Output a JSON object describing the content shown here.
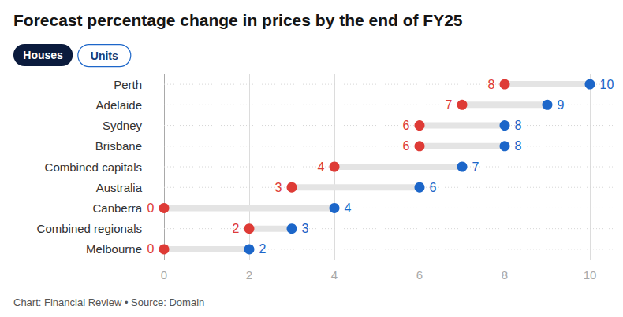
{
  "tabs": {
    "items": [
      "Houses",
      "Units"
    ],
    "selected": "Houses"
  },
  "chart_data": {
    "type": "dumbbell",
    "title": "Forecast percentage change in prices by the end of FY25",
    "source": "Chart: Financial Review • Source: Domain",
    "orientation": "horizontal",
    "categories": [
      "Perth",
      "Adelaide",
      "Sydney",
      "Brisbane",
      "Combined capitals",
      "Australia",
      "Canberra",
      "Combined regionals",
      "Melbourne"
    ],
    "series": [
      {
        "color": "#de3b36",
        "values": [
          8,
          7,
          6,
          6,
          4,
          3,
          0,
          2,
          0
        ]
      },
      {
        "color": "#1c66c9",
        "values": [
          10,
          9,
          8,
          8,
          7,
          6,
          4,
          3,
          2
        ]
      }
    ],
    "xlim": [
      0,
      10
    ],
    "xticks": [
      0,
      2,
      4,
      6,
      8,
      10
    ],
    "grid": true,
    "data_labels": true
  }
}
